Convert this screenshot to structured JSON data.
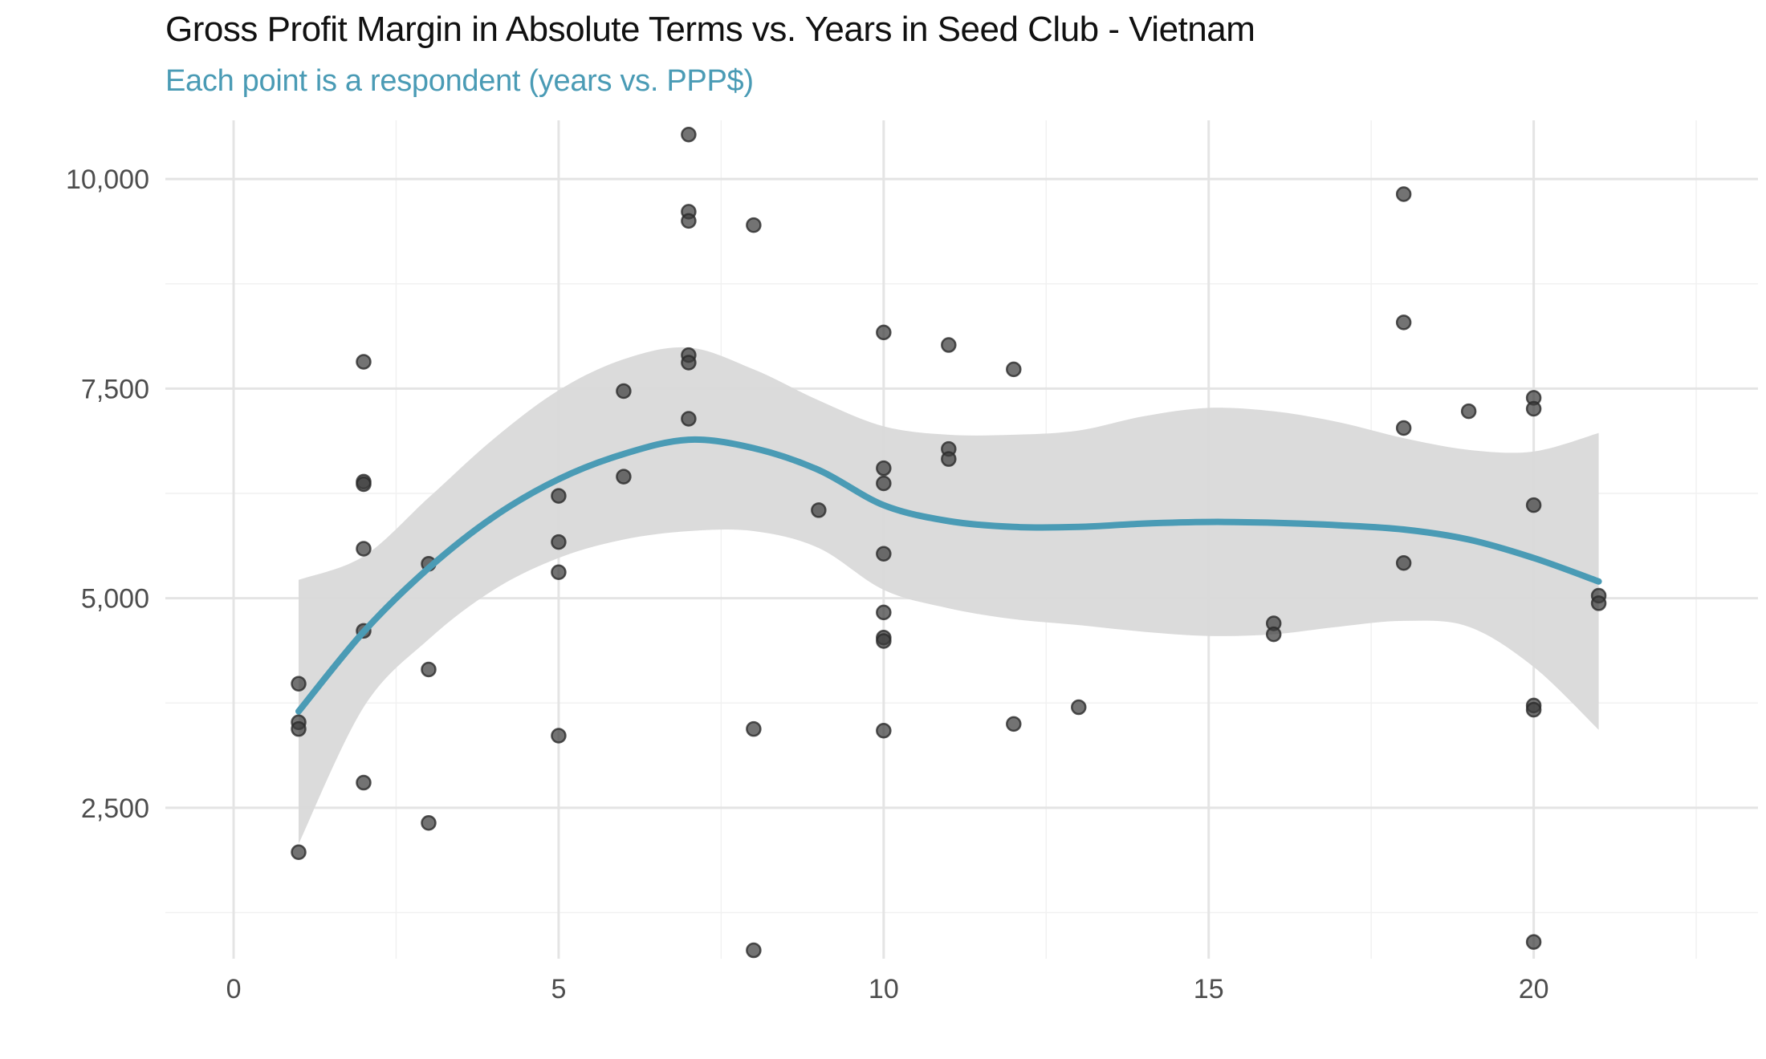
{
  "chart_data": {
    "type": "scatter",
    "title": "Gross Profit Margin in Absolute Terms vs. Years in Seed Club - Vietnam",
    "subtitle": "Each point is a respondent (years vs. PPP$)",
    "xlabel": "",
    "ylabel": "",
    "xlim": [
      -1.05,
      23.45
    ],
    "ylim": [
      700,
      10700
    ],
    "x_ticks": [
      0,
      5,
      10,
      15,
      20
    ],
    "x_tick_labels": [
      "0",
      "5",
      "10",
      "15",
      "20"
    ],
    "y_ticks": [
      2500,
      5000,
      7500,
      10000
    ],
    "y_tick_labels": [
      "2,500",
      "5,000",
      "7,500",
      "10,000"
    ],
    "grid": true,
    "colors": {
      "points": "#3d3d3d",
      "smooth_line": "#4a9bb5",
      "confidence_band": "#d9d9d9",
      "subtitle": "#4a9bb5"
    },
    "points": [
      {
        "x": 1,
        "y": 3980
      },
      {
        "x": 1,
        "y": 3520
      },
      {
        "x": 1,
        "y": 3440
      },
      {
        "x": 1,
        "y": 1970
      },
      {
        "x": 2,
        "y": 7820
      },
      {
        "x": 2,
        "y": 6390
      },
      {
        "x": 2,
        "y": 6360
      },
      {
        "x": 2,
        "y": 5590
      },
      {
        "x": 2,
        "y": 4610
      },
      {
        "x": 2,
        "y": 2800
      },
      {
        "x": 3,
        "y": 5410
      },
      {
        "x": 3,
        "y": 4150
      },
      {
        "x": 3,
        "y": 2320
      },
      {
        "x": 5,
        "y": 6220
      },
      {
        "x": 5,
        "y": 5670
      },
      {
        "x": 5,
        "y": 5310
      },
      {
        "x": 5,
        "y": 3360
      },
      {
        "x": 6,
        "y": 7470
      },
      {
        "x": 6,
        "y": 6450
      },
      {
        "x": 7,
        "y": 10530
      },
      {
        "x": 7,
        "y": 9610
      },
      {
        "x": 7,
        "y": 9500
      },
      {
        "x": 7,
        "y": 7900
      },
      {
        "x": 7,
        "y": 7810
      },
      {
        "x": 7,
        "y": 7140
      },
      {
        "x": 8,
        "y": 9450
      },
      {
        "x": 8,
        "y": 3440
      },
      {
        "x": 8,
        "y": 800
      },
      {
        "x": 9,
        "y": 6050
      },
      {
        "x": 10,
        "y": 8170
      },
      {
        "x": 10,
        "y": 6550
      },
      {
        "x": 10,
        "y": 6370
      },
      {
        "x": 10,
        "y": 5530
      },
      {
        "x": 10,
        "y": 4830
      },
      {
        "x": 10,
        "y": 4530
      },
      {
        "x": 10,
        "y": 4490
      },
      {
        "x": 10,
        "y": 3420
      },
      {
        "x": 11,
        "y": 8020
      },
      {
        "x": 11,
        "y": 6780
      },
      {
        "x": 11,
        "y": 6660
      },
      {
        "x": 12,
        "y": 7730
      },
      {
        "x": 12,
        "y": 3500
      },
      {
        "x": 13,
        "y": 3700
      },
      {
        "x": 16,
        "y": 4700
      },
      {
        "x": 16,
        "y": 4570
      },
      {
        "x": 18,
        "y": 9820
      },
      {
        "x": 18,
        "y": 8290
      },
      {
        "x": 18,
        "y": 7030
      },
      {
        "x": 18,
        "y": 5420
      },
      {
        "x": 19,
        "y": 7230
      },
      {
        "x": 20,
        "y": 7390
      },
      {
        "x": 20,
        "y": 7260
      },
      {
        "x": 20,
        "y": 6110
      },
      {
        "x": 20,
        "y": 3720
      },
      {
        "x": 20,
        "y": 3670
      },
      {
        "x": 20,
        "y": 900
      },
      {
        "x": 21,
        "y": 5030
      },
      {
        "x": 21,
        "y": 4940
      }
    ],
    "smooth": {
      "method": "loess",
      "x": [
        1,
        2,
        3,
        4,
        5,
        6,
        7,
        8,
        9,
        10,
        11,
        12,
        13,
        14,
        15,
        16,
        17,
        18,
        19,
        20,
        21
      ],
      "y": [
        3650,
        4600,
        5360,
        5970,
        6420,
        6720,
        6890,
        6790,
        6530,
        6110,
        5920,
        5850,
        5850,
        5890,
        5910,
        5900,
        5870,
        5820,
        5700,
        5480,
        5200
      ],
      "lower": [
        2070,
        3700,
        4510,
        5100,
        5480,
        5700,
        5800,
        5800,
        5600,
        5100,
        4880,
        4750,
        4680,
        4600,
        4550,
        4570,
        4660,
        4730,
        4660,
        4180,
        3430
      ],
      "upper": [
        5220,
        5500,
        6200,
        6900,
        7480,
        7850,
        7990,
        7730,
        7360,
        7050,
        6950,
        6950,
        7000,
        7170,
        7270,
        7230,
        7100,
        6910,
        6770,
        6750,
        6970
      ]
    }
  }
}
